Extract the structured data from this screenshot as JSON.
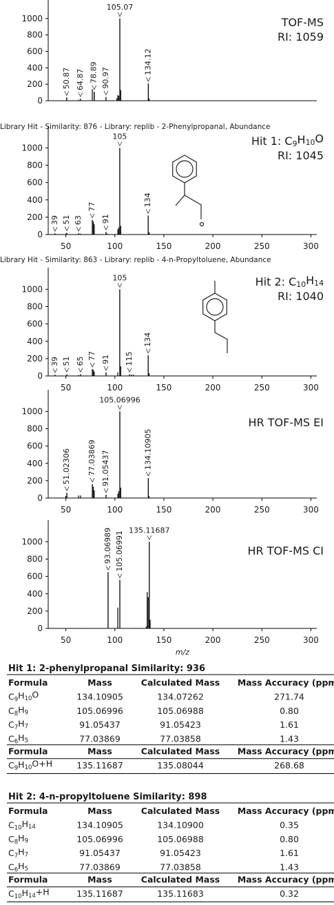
{
  "chart_data": [
    {
      "type": "bar",
      "color": "#000000",
      "annotations": [
        "TOF-MS",
        "RI: 1059"
      ],
      "peaks": {
        "x": [
          50.87,
          64.87,
          78.89,
          90.97,
          105.07,
          134.12
        ],
        "values": [
          40,
          25,
          110,
          45,
          1000,
          210
        ]
      },
      "minor_peaks": {
        "x": [
          51,
          63,
          77,
          79,
          102,
          103,
          104,
          106,
          135
        ],
        "values": [
          25,
          12,
          140,
          90,
          30,
          70,
          60,
          130,
          25
        ]
      },
      "xlim": [
        32,
        306
      ],
      "ylim": [
        0,
        1250
      ],
      "yticks": [
        0,
        200,
        400,
        600,
        800,
        1000
      ]
    },
    {
      "type": "bar",
      "color": "#000000",
      "title": "Library Hit - Similarity: 876 - Library: replib - 2-Phenylpropanal, Abundance",
      "annotations": [
        "Hit 1: C9H10O",
        "RI: 1045"
      ],
      "peaks": {
        "x": [
          39,
          51,
          63,
          77,
          91,
          105,
          134
        ],
        "values": [
          15,
          20,
          15,
          170,
          30,
          1000,
          220
        ]
      },
      "minor_peaks": {
        "x": [
          50,
          65,
          78,
          79,
          92,
          103,
          104,
          106,
          135
        ],
        "values": [
          10,
          10,
          150,
          120,
          10,
          60,
          80,
          100,
          25
        ]
      },
      "xlim": [
        32,
        306
      ],
      "ylim": [
        0,
        1250
      ],
      "yticks": [
        0,
        200,
        400,
        600,
        800,
        1000
      ],
      "xticks": [
        50,
        100,
        150,
        200,
        250,
        300
      ]
    },
    {
      "type": "bar",
      "color": "#000000",
      "title": "Library Hit - Similarity: 863 - Library: replib - 4-n-Propyltoluene, Abundance",
      "annotations": [
        "Hit 2: C10H14",
        "RI: 1040"
      ],
      "peaks": {
        "x": [
          39,
          51,
          65,
          77,
          91,
          105,
          115,
          134
        ],
        "values": [
          15,
          20,
          20,
          80,
          40,
          1000,
          20,
          240
        ]
      },
      "minor_peaks": {
        "x": [
          63,
          78,
          79,
          103,
          106,
          117,
          119,
          135
        ],
        "values": [
          10,
          70,
          50,
          40,
          110,
          15,
          15,
          30
        ]
      },
      "xlim": [
        32,
        306
      ],
      "ylim": [
        0,
        1250
      ],
      "yticks": [
        0,
        200,
        400,
        600,
        800,
        1000
      ],
      "xticks": [
        50,
        100,
        150,
        200,
        250,
        300
      ]
    },
    {
      "type": "bar",
      "color": "#000000",
      "annotations": [
        "HR TOF-MS EI"
      ],
      "peaks": {
        "x": [
          51.02306,
          77.03869,
          91.05437,
          105.06996,
          134.10905
        ],
        "values": [
          60,
          160,
          40,
          1000,
          230
        ]
      },
      "minor_peaks": {
        "x": [
          50,
          63,
          65,
          78,
          79,
          103,
          104,
          106,
          135
        ],
        "values": [
          25,
          30,
          30,
          130,
          90,
          50,
          80,
          120,
          20
        ]
      },
      "xlim": [
        32,
        306
      ],
      "ylim": [
        0,
        1250
      ],
      "yticks": [
        0,
        200,
        400,
        600,
        800,
        1000
      ],
      "xticks": [
        50,
        100,
        150,
        200,
        250,
        300
      ]
    },
    {
      "type": "bar",
      "color": "#000000",
      "annotations": [
        "HR TOF-MS CI"
      ],
      "xlabel": "m/z",
      "peaks": {
        "x": [
          93.06989,
          105.06991,
          135.11687
        ],
        "values": [
          650,
          560,
          1000
        ]
      },
      "minor_peaks": {
        "x": [
          70,
          103,
          121,
          132,
          133,
          134,
          136
        ],
        "values": [
          5,
          240,
          5,
          20,
          420,
          360,
          100
        ]
      },
      "xlim": [
        32,
        306
      ],
      "ylim": [
        0,
        1250
      ],
      "yticks": [
        0,
        200,
        400,
        600,
        800,
        1000
      ],
      "xticks": [
        50,
        100,
        150,
        200,
        250,
        300
      ]
    }
  ],
  "tables": [
    {
      "title": "Hit 1: 2-phenylpropanal Similarity: 936",
      "sections": [
        {
          "header": [
            "Formula",
            "Mass",
            "Calculated Mass",
            "Mass Accuracy (ppm)"
          ],
          "rows": [
            {
              "cells": [
                "C9H10O",
                "134.10905",
                "134.07262",
                "271.74"
              ],
              "color": "#e2231a"
            },
            {
              "cells": [
                "C8H9",
                "105.06996",
                "105.06988",
                "0.80"
              ]
            },
            {
              "cells": [
                "C7H7",
                "91.05437",
                "91.05423",
                "1.61"
              ]
            },
            {
              "cells": [
                "C6H5",
                "77.03869",
                "77.03858",
                "1.43"
              ]
            }
          ]
        },
        {
          "header": [
            "Formula",
            "Mass",
            "Calculated Mass",
            "Mass Accuracy (ppm)"
          ],
          "rows": [
            {
              "cells": [
                "C9H10O+H",
                "135.11687",
                "135.08044",
                "268.68"
              ],
              "color": "#e2231a"
            }
          ]
        }
      ]
    },
    {
      "title": "Hit 2: 4-n-propyltoluene Similarity: 898",
      "sections": [
        {
          "header": [
            "Formula",
            "Mass",
            "Calculated Mass",
            "Mass Accuracy (ppm)"
          ],
          "rows": [
            {
              "cells": [
                "C10H14",
                "134.10905",
                "134.10900",
                "0.35"
              ],
              "color": "#3aaa35"
            },
            {
              "cells": [
                "C8H9",
                "105.06996",
                "105.06988",
                "0.80"
              ]
            },
            {
              "cells": [
                "C7H7",
                "91.05437",
                "91.05423",
                "1.61"
              ]
            },
            {
              "cells": [
                "C6H5",
                "77.03869",
                "77.03858",
                "1.43"
              ]
            }
          ]
        },
        {
          "header": [
            "Formula",
            "Mass",
            "Calculated Mass",
            "Mass Accuracy (ppm)"
          ],
          "rows": [
            {
              "cells": [
                "C10H14+H",
                "135.11687",
                "135.11683",
                "0.32"
              ],
              "color": "#3aaa35"
            }
          ]
        }
      ]
    }
  ]
}
